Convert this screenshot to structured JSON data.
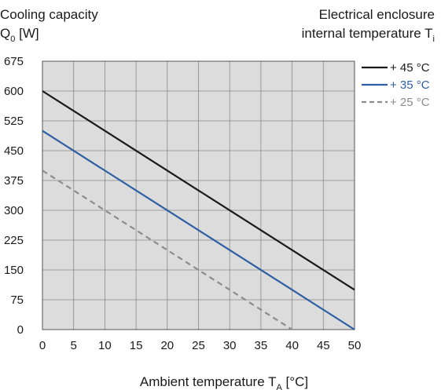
{
  "chart_data": {
    "type": "line",
    "ylabel_line1": "Cooling capacity",
    "ylabel_symbol": "Q",
    "ylabel_subscript": "0",
    "ylabel_unit": "[W]",
    "legend_title_line1": "Electrical enclosure",
    "legend_title_line2": "internal temperature T",
    "legend_title_subscript": "i",
    "xlabel_main": "Ambient temperature T",
    "xlabel_subscript": "A",
    "xlabel_unit": "[°C]",
    "xlim": [
      0,
      50
    ],
    "ylim": [
      0,
      675
    ],
    "x_ticks": [
      "0",
      "5",
      "10",
      "15",
      "20",
      "25",
      "30",
      "35",
      "40",
      "45",
      "50"
    ],
    "y_ticks": [
      "0",
      "75",
      "150",
      "225",
      "300",
      "375",
      "450",
      "525",
      "600",
      "675"
    ],
    "grid": true,
    "legend_position": "right",
    "series": [
      {
        "name": "+ 45 °C",
        "color": "#1a1a1a",
        "dash": "solid",
        "x": [
          0,
          50
        ],
        "y": [
          600,
          100
        ]
      },
      {
        "name": "+ 35 °C",
        "color": "#2e5fa3",
        "dash": "solid",
        "x": [
          0,
          50
        ],
        "y": [
          500,
          0
        ]
      },
      {
        "name": "+ 25 °C",
        "color": "#8c8c8c",
        "dash": "dashed",
        "x": [
          0,
          40
        ],
        "y": [
          400,
          0
        ]
      }
    ]
  }
}
